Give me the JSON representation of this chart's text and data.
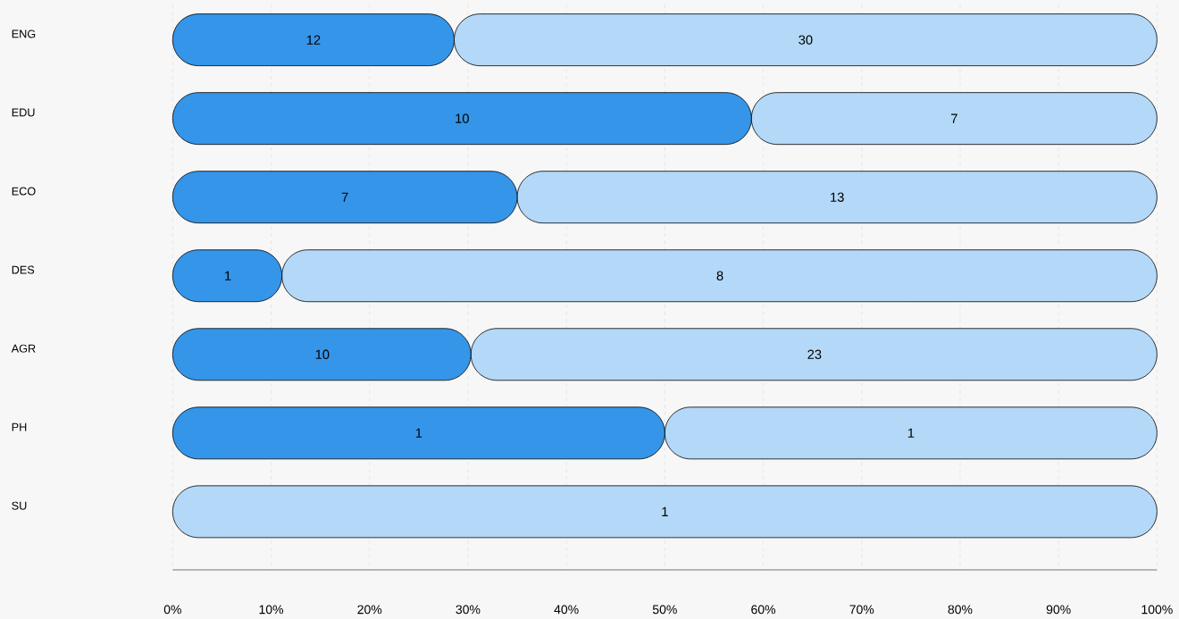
{
  "chart_data": {
    "type": "bar",
    "orientation": "horizontal",
    "stacked": true,
    "grid": "x",
    "categories": [
      "ENG",
      "EDU",
      "ECO",
      "DES",
      "AGR",
      "PH",
      "SU"
    ],
    "series": [
      {
        "color": "#3595e8",
        "values": [
          28.6,
          58.8,
          35,
          11.1,
          30.3,
          50,
          0
        ]
      },
      {
        "color": "#b3d8f8",
        "values": [
          71.4,
          41.2,
          65,
          88.9,
          69.7,
          50,
          100
        ]
      }
    ],
    "annotations": [
      {
        "text": "12",
        "x": 14.3,
        "y": "ENG"
      },
      {
        "text": "30",
        "x": 64.3,
        "y": "ENG"
      },
      {
        "text": "10",
        "x": 29.4,
        "y": "EDU"
      },
      {
        "text": "7",
        "x": 79.4,
        "y": "EDU"
      },
      {
        "text": "7",
        "x": 17.5,
        "y": "ECO"
      },
      {
        "text": "13",
        "x": 67.5,
        "y": "ECO"
      },
      {
        "text": "1",
        "x": 5.6,
        "y": "DES"
      },
      {
        "text": "8",
        "x": 55.6,
        "y": "DES"
      },
      {
        "text": "10",
        "x": 15.2,
        "y": "AGR"
      },
      {
        "text": "23",
        "x": 65.2,
        "y": "AGR"
      },
      {
        "text": "1",
        "x": 25,
        "y": "PH"
      },
      {
        "text": "1",
        "x": 75,
        "y": "PH"
      },
      {
        "text": "1",
        "x": 50,
        "y": "SU"
      }
    ],
    "xlim": [
      0,
      100
    ],
    "xticks": [
      {
        "value": 0,
        "label": "0%"
      },
      {
        "value": 10,
        "label": "10%"
      },
      {
        "value": 20,
        "label": "20%"
      },
      {
        "value": 30,
        "label": "30%"
      },
      {
        "value": 40,
        "label": "40%"
      },
      {
        "value": 50,
        "label": "50%"
      },
      {
        "value": 60,
        "label": "60%"
      },
      {
        "value": 70,
        "label": "70%"
      },
      {
        "value": 80,
        "label": "80%"
      },
      {
        "value": 90,
        "label": "90%"
      },
      {
        "value": 100,
        "label": "100%"
      }
    ]
  }
}
